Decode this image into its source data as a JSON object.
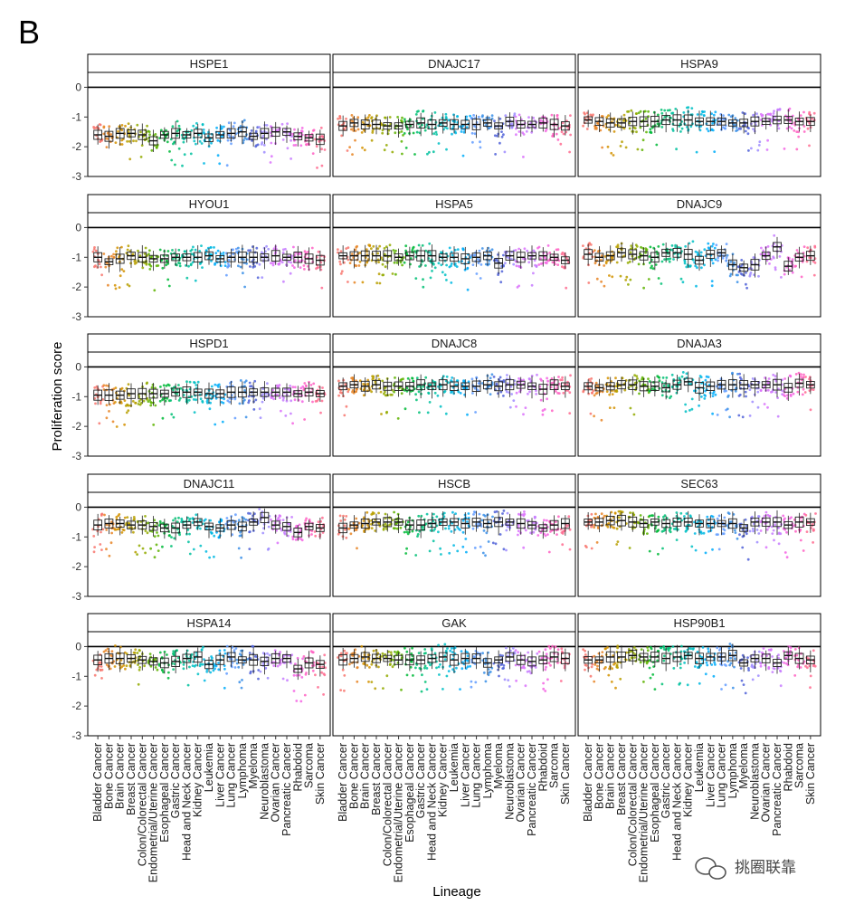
{
  "figure": {
    "panel_letter": "B",
    "watermark": "挑圈联靠"
  },
  "chart_data": {
    "type": "box",
    "xlabel": "Lineage",
    "ylabel": "Proliferation score",
    "ylim": [
      -3,
      0.5
    ],
    "yticks": [
      0,
      -1,
      -2,
      -3
    ],
    "reference_line": 0,
    "facet_layout": "5 rows x 3 columns",
    "categories": [
      "Bladder Cancer",
      "Bone Cancer",
      "Brain Cancer",
      "Breast Cancer",
      "Colon/Colorectal Cancer",
      "Endometrial/Uterine Cancer",
      "Esophageal Cancer",
      "Gastric Cancer",
      "Head and Neck Cancer",
      "Kidney Cancer",
      "Leukemia",
      "Liver Cancer",
      "Lung Cancer",
      "Lymphoma",
      "Myeloma",
      "Neuroblastoma",
      "Ovarian Cancer",
      "Pancreatic Cancer",
      "Rhabdoid",
      "Sarcoma",
      "Skin Cancer"
    ],
    "category_colors": [
      "#F8766D",
      "#E88526",
      "#D39200",
      "#B79F00",
      "#93AA00",
      "#5EB300",
      "#00BA38",
      "#00BF74",
      "#00C19F",
      "#00BFC4",
      "#00B9E3",
      "#00ADFA",
      "#619CFF",
      "#3A8FE8",
      "#5062D8",
      "#9F8CFF",
      "#DB72FB",
      "#C77CFF",
      "#F564E3",
      "#FF61C3",
      "#FF6C91"
    ],
    "facets": [
      {
        "gene": "HSPE1",
        "medians": [
          -1.6,
          -1.65,
          -1.55,
          -1.55,
          -1.6,
          -1.8,
          -1.6,
          -1.55,
          -1.6,
          -1.55,
          -1.7,
          -1.6,
          -1.55,
          -1.5,
          -1.65,
          -1.55,
          -1.5,
          -1.5,
          -1.65,
          -1.7,
          -1.75
        ]
      },
      {
        "gene": "DNAJC17",
        "medians": [
          -1.3,
          -1.2,
          -1.25,
          -1.25,
          -1.3,
          -1.3,
          -1.25,
          -1.2,
          -1.25,
          -1.2,
          -1.25,
          -1.25,
          -1.25,
          -1.2,
          -1.3,
          -1.15,
          -1.25,
          -1.25,
          -1.2,
          -1.25,
          -1.3
        ]
      },
      {
        "gene": "HSPA9",
        "medians": [
          -1.1,
          -1.15,
          -1.2,
          -1.2,
          -1.15,
          -1.15,
          -1.15,
          -1.1,
          -1.1,
          -1.1,
          -1.15,
          -1.15,
          -1.15,
          -1.2,
          -1.2,
          -1.15,
          -1.15,
          -1.1,
          -1.1,
          -1.15,
          -1.15
        ]
      },
      {
        "gene": "HYOU1",
        "medians": [
          -1.0,
          -1.15,
          -1.05,
          -0.95,
          -1.0,
          -1.05,
          -1.05,
          -1.0,
          -1.0,
          -1.0,
          -0.95,
          -1.05,
          -1.0,
          -1.0,
          -1.0,
          -1.0,
          -0.95,
          -1.0,
          -1.0,
          -1.05,
          -1.1
        ]
      },
      {
        "gene": "HSPA5",
        "medians": [
          -0.95,
          -0.95,
          -0.95,
          -0.95,
          -0.95,
          -1.0,
          -0.95,
          -0.95,
          -0.95,
          -1.0,
          -1.0,
          -1.05,
          -1.0,
          -0.95,
          -1.2,
          -0.95,
          -1.0,
          -0.95,
          -0.95,
          -1.0,
          -1.1
        ]
      },
      {
        "gene": "DNAJC9",
        "medians": [
          -0.9,
          -1.0,
          -0.95,
          -0.85,
          -0.9,
          -0.95,
          -1.0,
          -0.85,
          -0.85,
          -0.9,
          -1.1,
          -0.9,
          -0.85,
          -1.25,
          -1.35,
          -1.25,
          -0.95,
          -0.65,
          -1.3,
          -1.0,
          -0.95
        ]
      },
      {
        "gene": "HSPD1",
        "medians": [
          -0.95,
          -0.95,
          -0.95,
          -0.9,
          -0.9,
          -0.9,
          -0.9,
          -0.85,
          -0.85,
          -0.85,
          -0.9,
          -0.9,
          -0.85,
          -0.85,
          -0.85,
          -0.85,
          -0.85,
          -0.85,
          -0.9,
          -0.85,
          -0.9
        ]
      },
      {
        "gene": "DNAJC8",
        "medians": [
          -0.65,
          -0.6,
          -0.65,
          -0.6,
          -0.65,
          -0.65,
          -0.65,
          -0.6,
          -0.65,
          -0.6,
          -0.65,
          -0.65,
          -0.65,
          -0.6,
          -0.65,
          -0.6,
          -0.6,
          -0.65,
          -0.75,
          -0.6,
          -0.65
        ]
      },
      {
        "gene": "DNAJA3",
        "medians": [
          -0.65,
          -0.7,
          -0.65,
          -0.6,
          -0.6,
          -0.65,
          -0.65,
          -0.7,
          -0.6,
          -0.5,
          -0.7,
          -0.65,
          -0.6,
          -0.6,
          -0.6,
          -0.6,
          -0.6,
          -0.6,
          -0.7,
          -0.55,
          -0.6
        ]
      },
      {
        "gene": "DNAJC11",
        "medians": [
          -0.6,
          -0.55,
          -0.55,
          -0.6,
          -0.6,
          -0.65,
          -0.7,
          -0.7,
          -0.6,
          -0.5,
          -0.65,
          -0.7,
          -0.6,
          -0.65,
          -0.5,
          -0.35,
          -0.6,
          -0.65,
          -0.85,
          -0.65,
          -0.7
        ]
      },
      {
        "gene": "HSCB",
        "medians": [
          -0.7,
          -0.6,
          -0.55,
          -0.5,
          -0.5,
          -0.5,
          -0.6,
          -0.6,
          -0.55,
          -0.5,
          -0.5,
          -0.55,
          -0.5,
          -0.55,
          -0.5,
          -0.5,
          -0.55,
          -0.6,
          -0.7,
          -0.6,
          -0.55
        ]
      },
      {
        "gene": "SEC63",
        "medians": [
          -0.5,
          -0.5,
          -0.45,
          -0.45,
          -0.5,
          -0.55,
          -0.5,
          -0.55,
          -0.5,
          -0.5,
          -0.55,
          -0.55,
          -0.55,
          -0.55,
          -0.7,
          -0.5,
          -0.5,
          -0.5,
          -0.6,
          -0.5,
          -0.5
        ]
      },
      {
        "gene": "HSPA14",
        "medians": [
          -0.45,
          -0.4,
          -0.4,
          -0.4,
          -0.45,
          -0.5,
          -0.55,
          -0.5,
          -0.4,
          -0.35,
          -0.6,
          -0.45,
          -0.35,
          -0.45,
          -0.45,
          -0.5,
          -0.4,
          -0.4,
          -0.75,
          -0.55,
          -0.6
        ]
      },
      {
        "gene": "GAK",
        "medians": [
          -0.45,
          -0.4,
          -0.35,
          -0.4,
          -0.4,
          -0.45,
          -0.45,
          -0.45,
          -0.4,
          -0.35,
          -0.45,
          -0.4,
          -0.4,
          -0.55,
          -0.45,
          -0.35,
          -0.45,
          -0.5,
          -0.45,
          -0.35,
          -0.4
        ]
      },
      {
        "gene": "HSP90B1",
        "medians": [
          -0.45,
          -0.45,
          -0.35,
          -0.35,
          -0.3,
          -0.35,
          -0.35,
          -0.4,
          -0.35,
          -0.3,
          -0.4,
          -0.35,
          -0.35,
          -0.3,
          -0.55,
          -0.4,
          -0.4,
          -0.55,
          -0.3,
          -0.4,
          -0.45
        ]
      }
    ]
  }
}
